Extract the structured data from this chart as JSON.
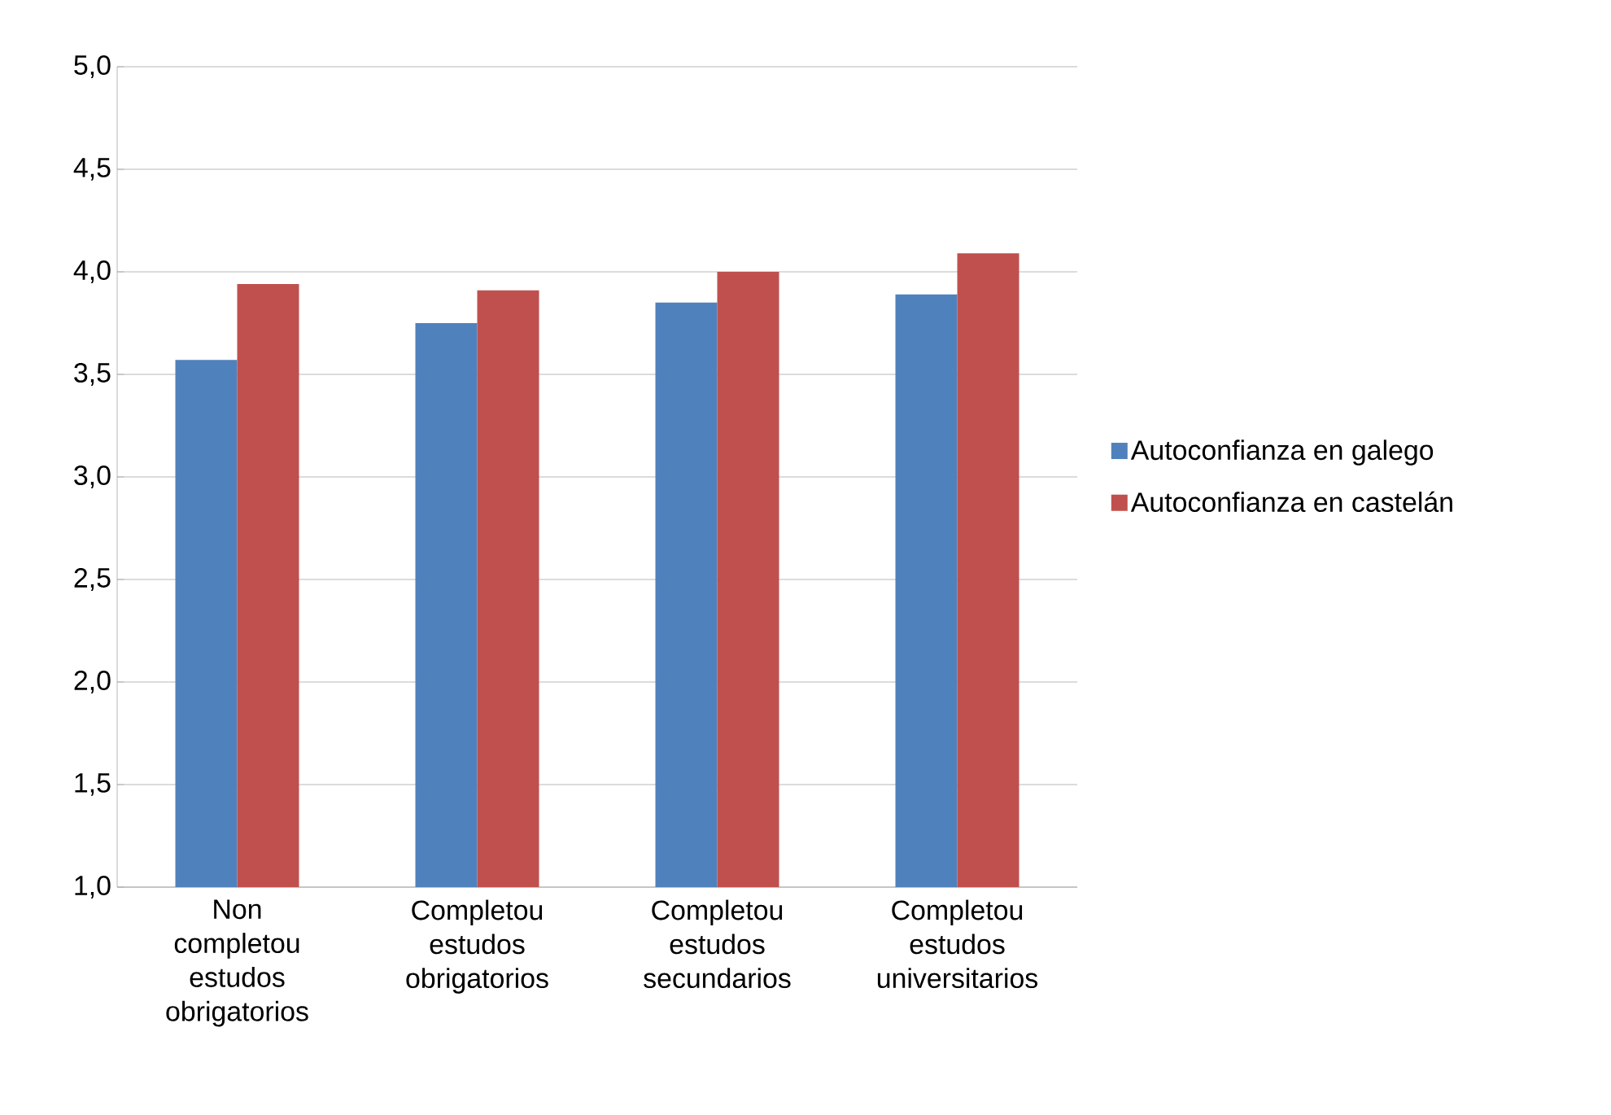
{
  "chart_data": {
    "type": "bar",
    "categories": [
      "Non completou estudos obrigatorios",
      "Completou estudos obrigatorios",
      "Completou estudos secundarios",
      "Completou estudos universitarios"
    ],
    "series": [
      {
        "name": "Autoconfianza en galego",
        "color": "#4f81bd",
        "values": [
          3.57,
          3.75,
          3.85,
          3.89
        ]
      },
      {
        "name": "Autoconfianza en castelán",
        "color": "#c0504d",
        "values": [
          3.94,
          3.91,
          4.0,
          4.09
        ]
      }
    ],
    "ylim": [
      1,
      5
    ],
    "yticks": [
      {
        "value": 1,
        "label": "1,0"
      },
      {
        "value": 1.5,
        "label": "1,5"
      },
      {
        "value": 2,
        "label": "2,0"
      },
      {
        "value": 2.5,
        "label": "2,5"
      },
      {
        "value": 3,
        "label": "3,0"
      },
      {
        "value": 3.5,
        "label": "3,5"
      },
      {
        "value": 4,
        "label": "4,0"
      },
      {
        "value": 4.5,
        "label": "4,5"
      },
      {
        "value": 5,
        "label": "5,0"
      }
    ],
    "grid": "y",
    "legend": "right"
  }
}
